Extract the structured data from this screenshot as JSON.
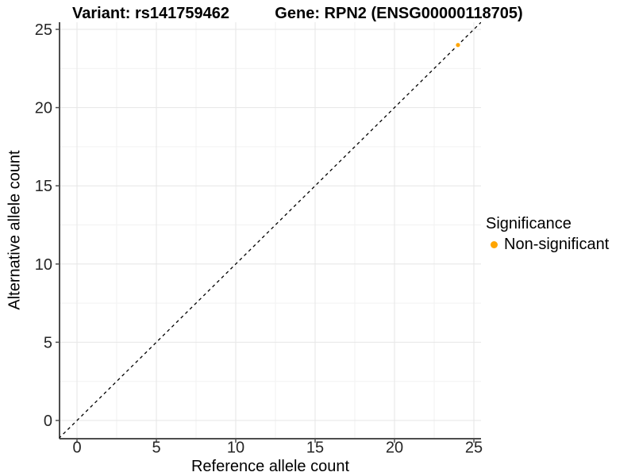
{
  "chart_data": {
    "type": "scatter",
    "title_left": "Variant: rs141759462",
    "title_right": "Gene: RPN2 (ENSG00000118705)",
    "xlabel": "Reference allele count",
    "ylabel": "Alternative allele count",
    "xlim": [
      0,
      25
    ],
    "ylim": [
      0,
      25
    ],
    "xticks": [
      0,
      5,
      10,
      15,
      20,
      25
    ],
    "yticks": [
      0,
      5,
      10,
      15,
      20,
      25
    ],
    "minor_grid_start": 2.5,
    "minor_grid_step": 5,
    "grid": "major+minor",
    "legend_position": "right",
    "legend": {
      "title": "Significance",
      "items": [
        {
          "label": "Non-significant",
          "color": "#FFA500",
          "marker": "circle"
        }
      ]
    },
    "reference_line": {
      "type": "identity",
      "slope": 1,
      "intercept": 0,
      "linestyle": "dashed",
      "color": "#000000"
    },
    "series": [
      {
        "name": "Non-significant",
        "color": "#FFA500",
        "points": [
          {
            "x": 24,
            "y": 24
          }
        ]
      }
    ]
  },
  "colors": {
    "background": "#FFFFFF",
    "grid_major": "#E6E6E6",
    "grid_minor": "#F2F2F2",
    "axis_line": "#4D4D4D",
    "tick_mark": "#4D4D4D",
    "tick_text": "#262626",
    "title_text": "#000000"
  }
}
